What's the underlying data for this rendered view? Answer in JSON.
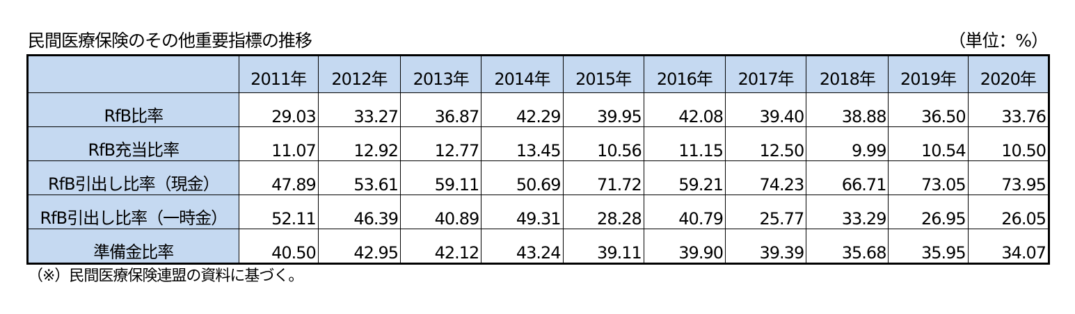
{
  "title": "民間医療保険のその他重要指標の推移",
  "unit": "（単位：%）",
  "table": {
    "corner": "",
    "years": [
      "2011年",
      "2012年",
      "2013年",
      "2014年",
      "2015年",
      "2016年",
      "2017年",
      "2018年",
      "2019年",
      "2020年"
    ],
    "rows": [
      {
        "label": "RfB比率",
        "values": [
          "29.03",
          "33.27",
          "36.87",
          "42.29",
          "39.95",
          "42.08",
          "39.40",
          "38.88",
          "36.50",
          "33.76"
        ]
      },
      {
        "label": "RfB充当比率",
        "values": [
          "11.07",
          "12.92",
          "12.77",
          "13.45",
          "10.56",
          "11.15",
          "12.50",
          "9.99",
          "10.54",
          "10.50"
        ]
      },
      {
        "label": "RfB引出し比率（現金）",
        "values": [
          "47.89",
          "53.61",
          "59.11",
          "50.69",
          "71.72",
          "59.21",
          "74.23",
          "66.71",
          "73.05",
          "73.95"
        ]
      },
      {
        "label": "RfB引出し比率（一時金）",
        "values": [
          "52.11",
          "46.39",
          "40.89",
          "49.31",
          "28.28",
          "40.79",
          "25.77",
          "33.29",
          "26.95",
          "26.05"
        ]
      },
      {
        "label": "準備金比率",
        "values": [
          "40.50",
          "42.95",
          "42.12",
          "43.24",
          "39.11",
          "39.90",
          "39.39",
          "35.68",
          "35.95",
          "34.07"
        ]
      }
    ]
  },
  "note": "（※）民間医療保険連盟の資料に基づく。"
}
